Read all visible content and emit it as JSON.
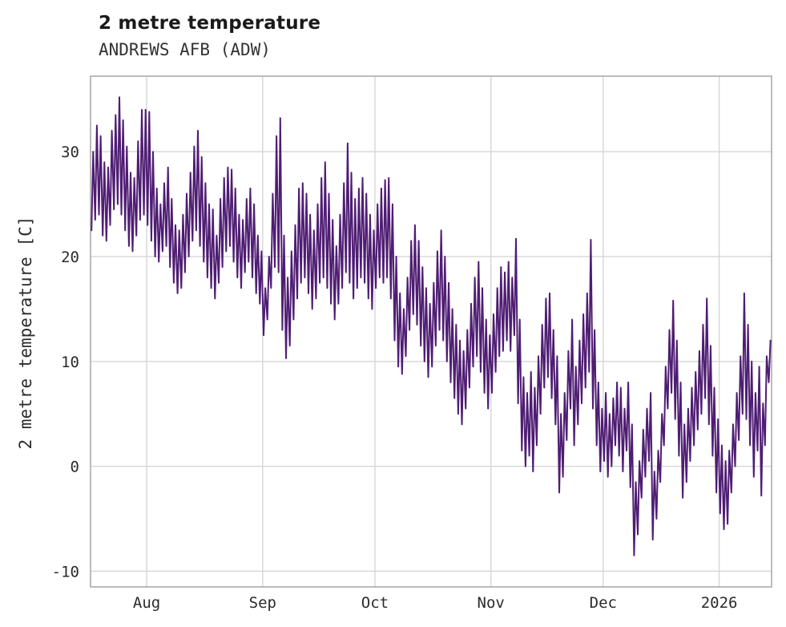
{
  "header": {
    "title": "2 metre temperature",
    "subtitle": "ANDREWS AFB (ADW)"
  },
  "chart_data": {
    "type": "line",
    "title": "2 metre temperature",
    "subtitle": "ANDREWS AFB (ADW)",
    "station": "ANDREWS AFB (ADW)",
    "ylabel": "2 metre temperature [C]",
    "xlabel": "",
    "series_name": "2 metre temperature [C]",
    "x_unit": "day index from Jul 17",
    "xlim": [
      0,
      182
    ],
    "ylim": [
      -11.5,
      37.2
    ],
    "x_ticks": [
      {
        "pos": 15,
        "label": "Aug"
      },
      {
        "pos": 46,
        "label": "Sep"
      },
      {
        "pos": 76,
        "label": "Oct"
      },
      {
        "pos": 107,
        "label": "Nov"
      },
      {
        "pos": 137,
        "label": "Dec"
      },
      {
        "pos": 168,
        "label": "2026"
      }
    ],
    "y_ticks": [
      -10,
      0,
      10,
      20,
      30
    ],
    "grid": true,
    "legend": "none",
    "line_color": "#4f1d73",
    "grid_color": "#d6d6d6",
    "axis_color": "#ababab",
    "text_color": "#2b2b2b",
    "background": "#ffffff",
    "daily_min_max": [
      [
        22.5,
        30.0
      ],
      [
        23.5,
        32.5
      ],
      [
        24.0,
        31.5
      ],
      [
        22.0,
        29.0
      ],
      [
        21.5,
        28.5
      ],
      [
        23.0,
        32.0
      ],
      [
        24.5,
        33.5
      ],
      [
        25.0,
        35.2
      ],
      [
        24.0,
        33.0
      ],
      [
        22.5,
        30.5
      ],
      [
        21.0,
        28.0
      ],
      [
        20.5,
        27.5
      ],
      [
        22.0,
        31.0
      ],
      [
        23.5,
        34.0
      ],
      [
        24.0,
        34.0
      ],
      [
        23.0,
        33.8
      ],
      [
        21.5,
        30.0
      ],
      [
        20.0,
        26.5
      ],
      [
        19.5,
        25.0
      ],
      [
        20.5,
        27.0
      ],
      [
        21.0,
        28.5
      ],
      [
        19.0,
        25.5
      ],
      [
        17.5,
        23.0
      ],
      [
        16.5,
        22.5
      ],
      [
        17.0,
        24.0
      ],
      [
        18.5,
        26.0
      ],
      [
        20.0,
        28.0
      ],
      [
        21.5,
        30.5
      ],
      [
        22.5,
        32.0
      ],
      [
        21.0,
        29.5
      ],
      [
        19.5,
        27.0
      ],
      [
        18.0,
        25.0
      ],
      [
        17.0,
        24.5
      ],
      [
        16.0,
        22.0
      ],
      [
        17.5,
        25.5
      ],
      [
        19.0,
        27.5
      ],
      [
        20.5,
        28.5
      ],
      [
        21.0,
        28.3
      ],
      [
        19.5,
        26.5
      ],
      [
        18.0,
        24.0
      ],
      [
        17.0,
        23.5
      ],
      [
        18.5,
        25.5
      ],
      [
        19.5,
        26.5
      ],
      [
        18.0,
        25.0
      ],
      [
        16.5,
        22.0
      ],
      [
        15.5,
        20.5
      ],
      [
        12.5,
        17.0
      ],
      [
        14.0,
        20.0
      ],
      [
        17.0,
        26.0
      ],
      [
        19.0,
        31.5
      ],
      [
        18.5,
        33.2
      ],
      [
        13.0,
        22.0
      ],
      [
        10.3,
        18.0
      ],
      [
        11.5,
        20.5
      ],
      [
        14.0,
        23.0
      ],
      [
        16.0,
        26.5
      ],
      [
        17.5,
        27.0
      ],
      [
        18.0,
        26.0
      ],
      [
        16.5,
        24.0
      ],
      [
        15.0,
        22.5
      ],
      [
        16.0,
        25.0
      ],
      [
        17.5,
        27.5
      ],
      [
        18.0,
        29.0
      ],
      [
        17.0,
        26.0
      ],
      [
        15.5,
        23.5
      ],
      [
        14.0,
        21.0
      ],
      [
        15.5,
        24.0
      ],
      [
        17.0,
        27.0
      ],
      [
        18.5,
        30.8
      ],
      [
        17.5,
        28.0
      ],
      [
        16.0,
        25.5
      ],
      [
        17.0,
        26.5
      ],
      [
        18.0,
        27.5
      ],
      [
        17.5,
        26.0
      ],
      [
        16.0,
        24.0
      ],
      [
        15.0,
        22.5
      ],
      [
        17.0,
        25.0
      ],
      [
        18.0,
        26.5
      ],
      [
        17.5,
        27.3
      ],
      [
        18.0,
        27.5
      ],
      [
        16.0,
        25.0
      ],
      [
        12.0,
        20.0
      ],
      [
        9.5,
        16.5
      ],
      [
        8.8,
        15.0
      ],
      [
        10.5,
        18.0
      ],
      [
        13.0,
        21.5
      ],
      [
        14.5,
        23.0
      ],
      [
        13.5,
        21.5
      ],
      [
        11.5,
        19.0
      ],
      [
        10.0,
        17.0
      ],
      [
        8.5,
        15.5
      ],
      [
        9.5,
        17.5
      ],
      [
        11.5,
        20.5
      ],
      [
        13.0,
        22.5
      ],
      [
        12.0,
        20.0
      ],
      [
        10.0,
        17.5
      ],
      [
        8.0,
        15.0
      ],
      [
        6.5,
        13.5
      ],
      [
        5.0,
        12.0
      ],
      [
        4.0,
        11.0
      ],
      [
        5.5,
        13.0
      ],
      [
        7.5,
        15.5
      ],
      [
        9.5,
        18.0
      ],
      [
        10.5,
        19.5
      ],
      [
        9.0,
        17.0
      ],
      [
        7.0,
        14.0
      ],
      [
        5.5,
        12.5
      ],
      [
        7.0,
        14.5
      ],
      [
        9.0,
        17.0
      ],
      [
        10.5,
        19.0
      ],
      [
        11.0,
        18.5
      ],
      [
        12.0,
        19.5
      ],
      [
        11.0,
        18.0
      ],
      [
        12.5,
        21.7
      ],
      [
        6.0,
        14.0
      ],
      [
        1.5,
        8.5
      ],
      [
        0.0,
        7.0
      ],
      [
        1.0,
        9.0
      ],
      [
        -0.5,
        7.5
      ],
      [
        2.0,
        10.5
      ],
      [
        5.0,
        13.5
      ],
      [
        7.5,
        16.0
      ],
      [
        8.5,
        16.5
      ],
      [
        6.5,
        13.0
      ],
      [
        4.0,
        10.5
      ],
      [
        -2.5,
        5.0
      ],
      [
        -1.0,
        7.0
      ],
      [
        2.5,
        11.0
      ],
      [
        5.5,
        14.0
      ],
      [
        2.0,
        9.5
      ],
      [
        4.0,
        12.0
      ],
      [
        6.0,
        14.5
      ],
      [
        7.5,
        16.5
      ],
      [
        9.0,
        21.6
      ],
      [
        5.5,
        13.0
      ],
      [
        2.0,
        8.0
      ],
      [
        -0.5,
        5.5
      ],
      [
        0.5,
        7.0
      ],
      [
        -1.0,
        5.0
      ],
      [
        0.0,
        6.5
      ],
      [
        2.0,
        8.0
      ],
      [
        1.0,
        7.5
      ],
      [
        -0.5,
        5.5
      ],
      [
        1.5,
        8.0
      ],
      [
        -2.0,
        4.0
      ],
      [
        -8.5,
        -1.5
      ],
      [
        -6.5,
        0.5
      ],
      [
        -3.0,
        3.5
      ],
      [
        -1.0,
        5.5
      ],
      [
        0.5,
        7.0
      ],
      [
        -7.0,
        -0.5
      ],
      [
        -5.0,
        1.5
      ],
      [
        -1.5,
        5.0
      ],
      [
        2.0,
        9.5
      ],
      [
        5.5,
        13.0
      ],
      [
        7.0,
        15.8
      ],
      [
        4.5,
        12.0
      ],
      [
        1.0,
        8.0
      ],
      [
        -3.0,
        4.0
      ],
      [
        -1.5,
        5.5
      ],
      [
        0.5,
        7.5
      ],
      [
        2.0,
        9.0
      ],
      [
        3.5,
        11.0
      ],
      [
        5.0,
        13.5
      ],
      [
        6.5,
        16.0
      ],
      [
        4.0,
        11.5
      ],
      [
        1.0,
        7.5
      ],
      [
        -2.5,
        4.5
      ],
      [
        -4.5,
        2.0
      ],
      [
        -6.0,
        0.5
      ],
      [
        -5.5,
        1.5
      ],
      [
        -2.5,
        4.0
      ],
      [
        0.0,
        7.0
      ],
      [
        2.5,
        10.5
      ],
      [
        5.0,
        16.5
      ],
      [
        4.5,
        13.5
      ],
      [
        2.0,
        10.0
      ],
      [
        -1.0,
        7.0
      ],
      [
        1.5,
        9.5
      ],
      [
        -2.8,
        6.0
      ],
      [
        2.0,
        10.5
      ],
      [
        8.0,
        12.0
      ]
    ]
  }
}
